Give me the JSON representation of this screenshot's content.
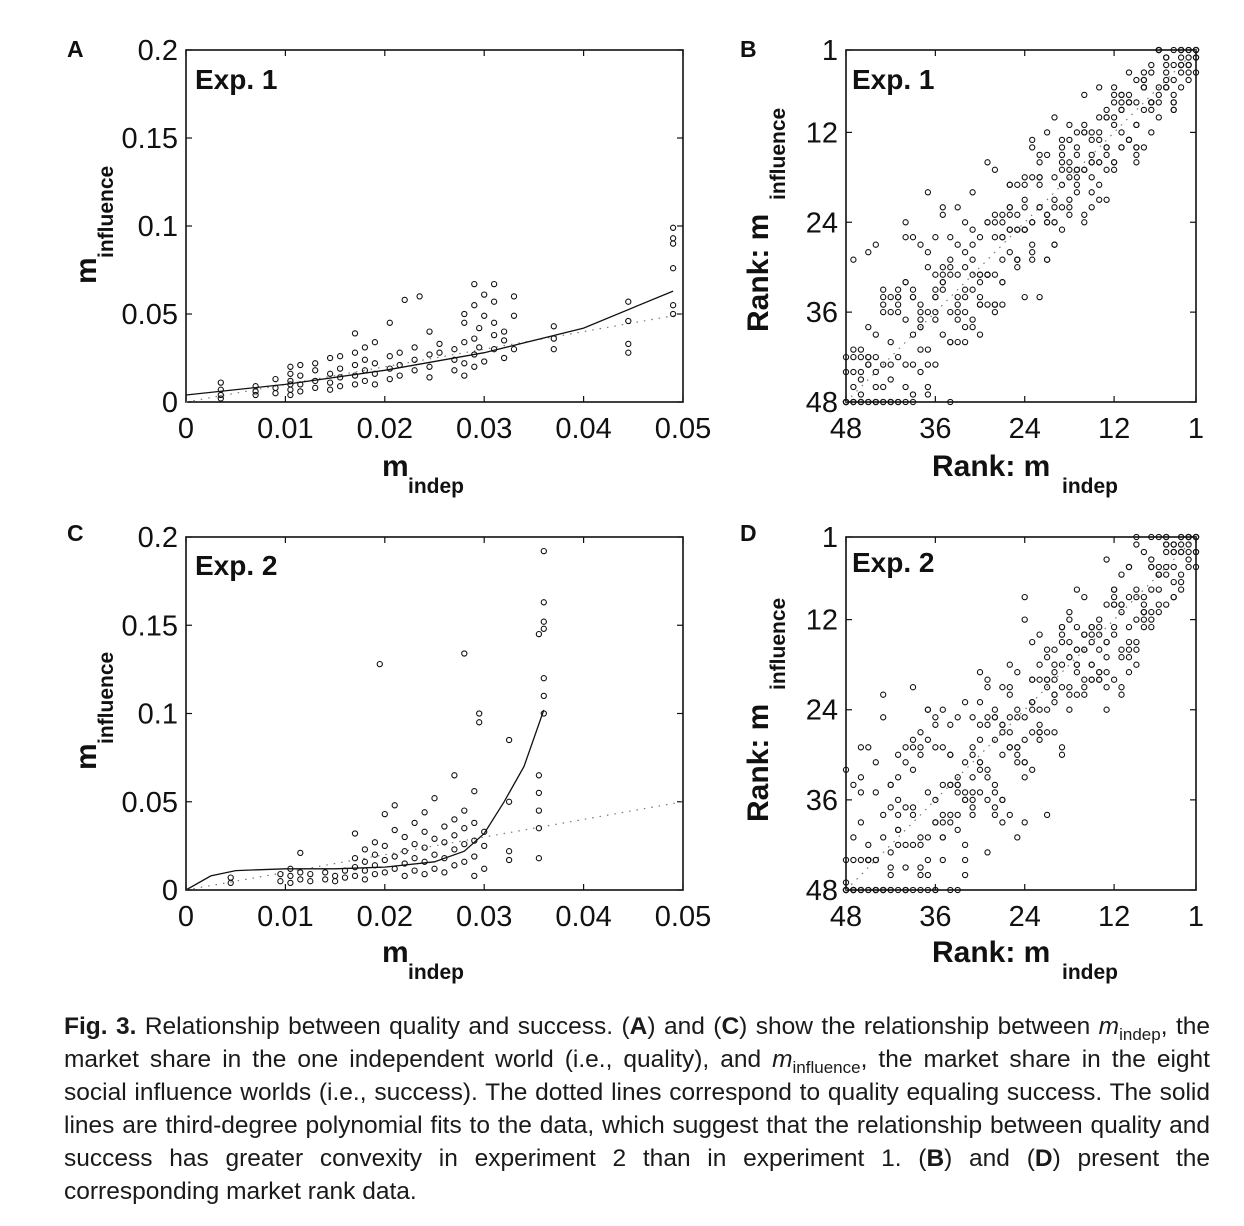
{
  "chart_data": [
    {
      "panel": "A",
      "type": "scatter",
      "annotation": "Exp. 1",
      "xlabel": "m",
      "xlabel_sub": "indep",
      "ylabel": "m",
      "ylabel_sub": "influence",
      "xlim": [
        0,
        0.05
      ],
      "ylim": [
        0,
        0.2
      ],
      "x_ticks": [
        0,
        0.01,
        0.02,
        0.03,
        0.04,
        0.05
      ],
      "x_tick_labels": [
        "0",
        "0.01",
        "0.02",
        "0.03",
        "0.04",
        "0.05"
      ],
      "y_ticks": [
        0,
        0.05,
        0.1,
        0.15,
        0.2
      ],
      "y_tick_labels": [
        "0",
        "0.05",
        "0.1",
        "0.15",
        "0.2"
      ],
      "points": [
        [
          0.0035,
          0.004
        ],
        [
          0.0035,
          0.007
        ],
        [
          0.0035,
          0.011
        ],
        [
          0.0035,
          0.002
        ],
        [
          0.007,
          0.006
        ],
        [
          0.007,
          0.009
        ],
        [
          0.007,
          0.004
        ],
        [
          0.009,
          0.008
        ],
        [
          0.009,
          0.013
        ],
        [
          0.009,
          0.005
        ],
        [
          0.0105,
          0.007
        ],
        [
          0.0105,
          0.012
        ],
        [
          0.0105,
          0.016
        ],
        [
          0.0105,
          0.02
        ],
        [
          0.0105,
          0.01
        ],
        [
          0.0105,
          0.004
        ],
        [
          0.0115,
          0.006
        ],
        [
          0.0115,
          0.01
        ],
        [
          0.0115,
          0.015
        ],
        [
          0.0115,
          0.021
        ],
        [
          0.013,
          0.008
        ],
        [
          0.013,
          0.012
        ],
        [
          0.013,
          0.018
        ],
        [
          0.013,
          0.022
        ],
        [
          0.0145,
          0.007
        ],
        [
          0.0145,
          0.011
        ],
        [
          0.0145,
          0.016
        ],
        [
          0.0145,
          0.025
        ],
        [
          0.0155,
          0.009
        ],
        [
          0.0155,
          0.014
        ],
        [
          0.0155,
          0.019
        ],
        [
          0.0155,
          0.026
        ],
        [
          0.017,
          0.01
        ],
        [
          0.017,
          0.015
        ],
        [
          0.017,
          0.021
        ],
        [
          0.017,
          0.028
        ],
        [
          0.017,
          0.039
        ],
        [
          0.018,
          0.012
        ],
        [
          0.018,
          0.018
        ],
        [
          0.018,
          0.024
        ],
        [
          0.018,
          0.031
        ],
        [
          0.019,
          0.01
        ],
        [
          0.019,
          0.016
        ],
        [
          0.019,
          0.022
        ],
        [
          0.019,
          0.034
        ],
        [
          0.0205,
          0.013
        ],
        [
          0.0205,
          0.019
        ],
        [
          0.0205,
          0.026
        ],
        [
          0.0205,
          0.045
        ],
        [
          0.0215,
          0.015
        ],
        [
          0.0215,
          0.021
        ],
        [
          0.0215,
          0.028
        ],
        [
          0.022,
          0.058
        ],
        [
          0.023,
          0.018
        ],
        [
          0.023,
          0.024
        ],
        [
          0.023,
          0.031
        ],
        [
          0.0235,
          0.06
        ],
        [
          0.0245,
          0.014
        ],
        [
          0.0245,
          0.02
        ],
        [
          0.0245,
          0.027
        ],
        [
          0.0245,
          0.04
        ],
        [
          0.0255,
          0.028
        ],
        [
          0.0255,
          0.033
        ],
        [
          0.027,
          0.018
        ],
        [
          0.027,
          0.024
        ],
        [
          0.027,
          0.03
        ],
        [
          0.028,
          0.015
        ],
        [
          0.028,
          0.022
        ],
        [
          0.028,
          0.034
        ],
        [
          0.028,
          0.045
        ],
        [
          0.028,
          0.05
        ],
        [
          0.029,
          0.02
        ],
        [
          0.029,
          0.027
        ],
        [
          0.029,
          0.036
        ],
        [
          0.029,
          0.055
        ],
        [
          0.029,
          0.067
        ],
        [
          0.0295,
          0.031
        ],
        [
          0.0295,
          0.042
        ],
        [
          0.03,
          0.023
        ],
        [
          0.03,
          0.049
        ],
        [
          0.03,
          0.061
        ],
        [
          0.031,
          0.03
        ],
        [
          0.031,
          0.038
        ],
        [
          0.031,
          0.045
        ],
        [
          0.031,
          0.057
        ],
        [
          0.031,
          0.067
        ],
        [
          0.032,
          0.025
        ],
        [
          0.032,
          0.035
        ],
        [
          0.032,
          0.04
        ],
        [
          0.033,
          0.03
        ],
        [
          0.033,
          0.049
        ],
        [
          0.033,
          0.06
        ],
        [
          0.037,
          0.03
        ],
        [
          0.037,
          0.036
        ],
        [
          0.037,
          0.043
        ],
        [
          0.0445,
          0.028
        ],
        [
          0.0445,
          0.033
        ],
        [
          0.0445,
          0.046
        ],
        [
          0.0445,
          0.057
        ],
        [
          0.049,
          0.05
        ],
        [
          0.049,
          0.055
        ],
        [
          0.049,
          0.076
        ],
        [
          0.049,
          0.09
        ],
        [
          0.049,
          0.093
        ],
        [
          0.049,
          0.099
        ]
      ],
      "fit_curve": [
        [
          0,
          0.004
        ],
        [
          0.01,
          0.01
        ],
        [
          0.02,
          0.018
        ],
        [
          0.03,
          0.028
        ],
        [
          0.04,
          0.042
        ],
        [
          0.049,
          0.063
        ]
      ],
      "diagonal": [
        [
          0,
          0
        ],
        [
          0.05,
          0.05
        ]
      ]
    },
    {
      "panel": "B",
      "type": "scatter",
      "annotation": "Exp. 1",
      "xlabel": "Rank:  m",
      "xlabel_sub": "indep",
      "ylabel": "Rank:  m",
      "ylabel_sub": "influence",
      "xlim": [
        48,
        1
      ],
      "ylim": [
        48,
        1
      ],
      "x_ticks": [
        48,
        36,
        24,
        12,
        1
      ],
      "x_tick_labels": [
        "48",
        "36",
        "24",
        "12",
        "1"
      ],
      "y_ticks": [
        1,
        12,
        24,
        36,
        48
      ],
      "y_tick_labels": [
        "1",
        "12",
        "24",
        "36",
        "48"
      ],
      "seed": 31,
      "spread": 10,
      "diagonal": [
        [
          48,
          48
        ],
        [
          1,
          1
        ]
      ]
    },
    {
      "panel": "C",
      "type": "scatter",
      "annotation": "Exp. 2",
      "xlabel": "m",
      "xlabel_sub": "indep",
      "ylabel": "m",
      "ylabel_sub": "influence",
      "xlim": [
        0,
        0.05
      ],
      "ylim": [
        0,
        0.2
      ],
      "x_ticks": [
        0,
        0.01,
        0.02,
        0.03,
        0.04,
        0.05
      ],
      "x_tick_labels": [
        "0",
        "0.01",
        "0.02",
        "0.03",
        "0.04",
        "0.05"
      ],
      "y_ticks": [
        0,
        0.05,
        0.1,
        0.15,
        0.2
      ],
      "y_tick_labels": [
        "0",
        "0.05",
        "0.1",
        "0.15",
        "0.2"
      ],
      "points": [
        [
          0.0045,
          0.004
        ],
        [
          0.0045,
          0.007
        ],
        [
          0.0095,
          0.005
        ],
        [
          0.0095,
          0.009
        ],
        [
          0.0105,
          0.004
        ],
        [
          0.0105,
          0.008
        ],
        [
          0.0105,
          0.012
        ],
        [
          0.0115,
          0.006
        ],
        [
          0.0115,
          0.01
        ],
        [
          0.0115,
          0.021
        ],
        [
          0.0125,
          0.005
        ],
        [
          0.0125,
          0.009
        ],
        [
          0.014,
          0.006
        ],
        [
          0.014,
          0.01
        ],
        [
          0.015,
          0.005
        ],
        [
          0.015,
          0.008
        ],
        [
          0.016,
          0.007
        ],
        [
          0.016,
          0.011
        ],
        [
          0.017,
          0.008
        ],
        [
          0.017,
          0.013
        ],
        [
          0.017,
          0.018
        ],
        [
          0.017,
          0.032
        ],
        [
          0.018,
          0.006
        ],
        [
          0.018,
          0.011
        ],
        [
          0.018,
          0.016
        ],
        [
          0.018,
          0.023
        ],
        [
          0.019,
          0.009
        ],
        [
          0.019,
          0.014
        ],
        [
          0.019,
          0.02
        ],
        [
          0.019,
          0.027
        ],
        [
          0.0195,
          0.128
        ],
        [
          0.02,
          0.01
        ],
        [
          0.02,
          0.017
        ],
        [
          0.02,
          0.025
        ],
        [
          0.02,
          0.043
        ],
        [
          0.021,
          0.012
        ],
        [
          0.021,
          0.019
        ],
        [
          0.021,
          0.034
        ],
        [
          0.021,
          0.048
        ],
        [
          0.022,
          0.008
        ],
        [
          0.022,
          0.015
        ],
        [
          0.022,
          0.022
        ],
        [
          0.022,
          0.03
        ],
        [
          0.023,
          0.011
        ],
        [
          0.023,
          0.018
        ],
        [
          0.023,
          0.026
        ],
        [
          0.023,
          0.038
        ],
        [
          0.024,
          0.009
        ],
        [
          0.024,
          0.016
        ],
        [
          0.024,
          0.024
        ],
        [
          0.024,
          0.033
        ],
        [
          0.024,
          0.044
        ],
        [
          0.025,
          0.012
        ],
        [
          0.025,
          0.02
        ],
        [
          0.025,
          0.029
        ],
        [
          0.025,
          0.052
        ],
        [
          0.026,
          0.01
        ],
        [
          0.026,
          0.018
        ],
        [
          0.026,
          0.027
        ],
        [
          0.026,
          0.036
        ],
        [
          0.027,
          0.014
        ],
        [
          0.027,
          0.023
        ],
        [
          0.027,
          0.031
        ],
        [
          0.027,
          0.04
        ],
        [
          0.027,
          0.065
        ],
        [
          0.028,
          0.016
        ],
        [
          0.028,
          0.026
        ],
        [
          0.028,
          0.035
        ],
        [
          0.028,
          0.045
        ],
        [
          0.028,
          0.134
        ],
        [
          0.029,
          0.008
        ],
        [
          0.029,
          0.019
        ],
        [
          0.029,
          0.028
        ],
        [
          0.029,
          0.038
        ],
        [
          0.029,
          0.056
        ],
        [
          0.0295,
          0.095
        ],
        [
          0.0295,
          0.1
        ],
        [
          0.03,
          0.012
        ],
        [
          0.03,
          0.025
        ],
        [
          0.03,
          0.033
        ],
        [
          0.0325,
          0.017
        ],
        [
          0.0325,
          0.022
        ],
        [
          0.0325,
          0.05
        ],
        [
          0.0325,
          0.085
        ],
        [
          0.0355,
          0.018
        ],
        [
          0.0355,
          0.035
        ],
        [
          0.0355,
          0.045
        ],
        [
          0.0355,
          0.055
        ],
        [
          0.0355,
          0.065
        ],
        [
          0.0355,
          0.145
        ],
        [
          0.036,
          0.1
        ],
        [
          0.036,
          0.11
        ],
        [
          0.036,
          0.12
        ],
        [
          0.036,
          0.148
        ],
        [
          0.036,
          0.152
        ],
        [
          0.036,
          0.163
        ],
        [
          0.036,
          0.192
        ]
      ],
      "fit_curve": [
        [
          0,
          0
        ],
        [
          0.0025,
          0.008
        ],
        [
          0.005,
          0.011
        ],
        [
          0.01,
          0.012
        ],
        [
          0.015,
          0.012
        ],
        [
          0.02,
          0.013
        ],
        [
          0.025,
          0.016
        ],
        [
          0.028,
          0.022
        ],
        [
          0.03,
          0.032
        ],
        [
          0.032,
          0.05
        ],
        [
          0.034,
          0.07
        ],
        [
          0.036,
          0.102
        ]
      ],
      "diagonal": [
        [
          0,
          0
        ],
        [
          0.05,
          0.05
        ]
      ]
    },
    {
      "panel": "D",
      "type": "scatter",
      "annotation": "Exp. 2",
      "xlabel": "Rank:  m",
      "xlabel_sub": "indep",
      "ylabel": "Rank:  m",
      "ylabel_sub": "influence",
      "xlim": [
        48,
        1
      ],
      "ylim": [
        48,
        1
      ],
      "x_ticks": [
        48,
        36,
        24,
        12,
        1
      ],
      "x_tick_labels": [
        "48",
        "36",
        "24",
        "12",
        "1"
      ],
      "y_ticks": [
        1,
        12,
        24,
        36,
        48
      ],
      "y_tick_labels": [
        "1",
        "12",
        "24",
        "36",
        "48"
      ],
      "seed": 77,
      "spread": 13,
      "diagonal": [
        [
          48,
          48
        ],
        [
          1,
          1
        ]
      ]
    }
  ],
  "caption": {
    "fig_label": "Fig. 3.",
    "t1": " Relationship between quality and success. ",
    "A": "A",
    "t2": " and ",
    "C": "C",
    "t3": " show the relationship between ",
    "m1": "m",
    "sub1": "indep",
    "t4": ", the market share in the one independent world (i.e., quality), and ",
    "m2": "m",
    "sub2": "influence",
    "t5": ", the market share in the eight social influence worlds (i.e., success). The dotted lines correspond to quality equaling success. The solid lines are third-degree polynomial fits to the data, which suggest that the relationship between quality and success has greater convexity in experiment 2 than in experiment 1. ",
    "B": "B",
    "t6": " and ",
    "D": "D",
    "t7": " present the corresponding market rank data."
  }
}
